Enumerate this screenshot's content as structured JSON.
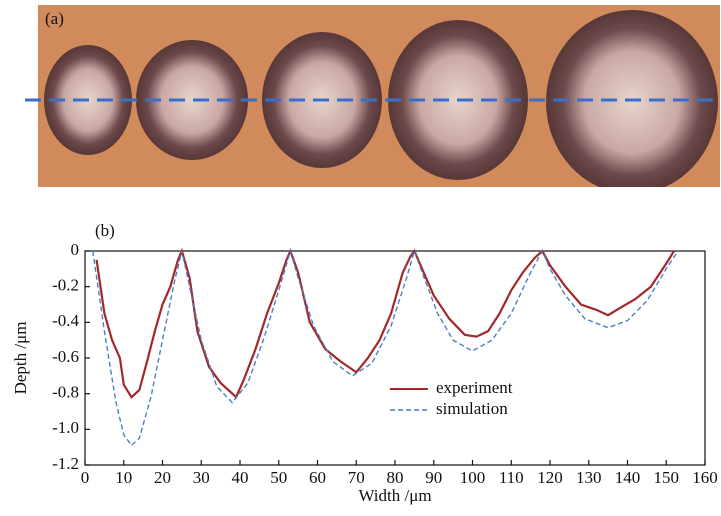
{
  "photo_label": "(a)",
  "chart_data": {
    "type": "line",
    "panel_label": "(b)",
    "x_label": "Width /μm",
    "y_label": "Depth /μm",
    "xlim": [
      0,
      160
    ],
    "xticks": [
      0,
      10,
      20,
      30,
      40,
      50,
      60,
      70,
      80,
      90,
      100,
      110,
      120,
      130,
      140,
      150,
      160
    ],
    "ylim": [
      -1.2,
      0
    ],
    "yticks": [
      0,
      -0.2,
      -0.4,
      -0.6,
      -0.8,
      {
        "value": -1,
        "label": "-1.0"
      },
      -1.2
    ],
    "legend": "center",
    "series": [
      {
        "name": "experiment",
        "color": "#a3282a",
        "dash": false,
        "x": [
          3,
          5,
          7,
          9,
          10,
          12,
          14,
          16,
          18,
          20,
          22,
          24,
          25,
          27,
          29,
          32,
          35,
          37,
          39,
          41,
          44,
          47,
          50,
          52,
          53,
          55,
          58,
          62,
          66,
          68,
          70,
          73,
          76,
          79,
          82,
          84,
          85,
          87,
          90,
          94,
          98,
          101,
          104,
          107,
          110,
          113,
          116,
          118,
          120,
          124,
          128,
          132,
          135,
          138,
          142,
          146,
          150,
          152
        ],
        "values": [
          -0.05,
          -0.35,
          -0.5,
          -0.6,
          -0.75,
          -0.82,
          -0.78,
          -0.62,
          -0.45,
          -0.3,
          -0.2,
          -0.05,
          0,
          -0.15,
          -0.45,
          -0.65,
          -0.74,
          -0.78,
          -0.82,
          -0.72,
          -0.55,
          -0.35,
          -0.18,
          -0.05,
          0,
          -0.12,
          -0.4,
          -0.55,
          -0.62,
          -0.65,
          -0.68,
          -0.6,
          -0.5,
          -0.35,
          -0.12,
          -0.03,
          0,
          -0.1,
          -0.25,
          -0.38,
          -0.47,
          -0.48,
          -0.45,
          -0.35,
          -0.22,
          -0.12,
          -0.04,
          0,
          -0.08,
          -0.2,
          -0.3,
          -0.33,
          -0.36,
          -0.32,
          -0.27,
          -0.2,
          -0.07,
          0
        ]
      },
      {
        "name": "simulation",
        "color": "#4a7fc4",
        "dash": true,
        "x": [
          2,
          5,
          8,
          10,
          12,
          14,
          17,
          20,
          23,
          25,
          27,
          30,
          34,
          38,
          42,
          46,
          50,
          53,
          55,
          59,
          64,
          69,
          74,
          79,
          83,
          85,
          87,
          91,
          95,
          100,
          105,
          110,
          115,
          118,
          120,
          124,
          129,
          135,
          140,
          145,
          150,
          153
        ],
        "values": [
          0,
          -0.45,
          -0.85,
          -1.03,
          -1.09,
          -1.05,
          -0.82,
          -0.5,
          -0.18,
          0,
          -0.2,
          -0.5,
          -0.76,
          -0.85,
          -0.74,
          -0.5,
          -0.22,
          0,
          -0.15,
          -0.42,
          -0.62,
          -0.7,
          -0.63,
          -0.42,
          -0.15,
          0,
          -0.12,
          -0.35,
          -0.5,
          -0.56,
          -0.5,
          -0.35,
          -0.12,
          0,
          -0.1,
          -0.25,
          -0.38,
          -0.43,
          -0.39,
          -0.28,
          -0.1,
          0
        ]
      }
    ]
  }
}
